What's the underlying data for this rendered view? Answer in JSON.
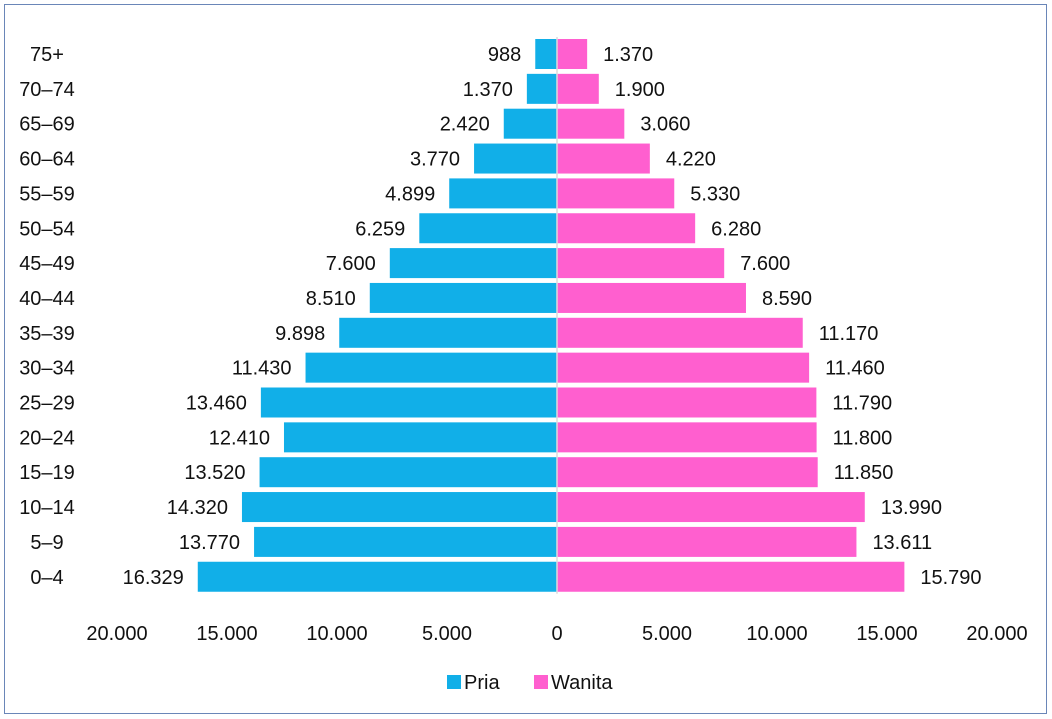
{
  "chart_data": {
    "type": "bar",
    "orientation": "horizontal",
    "layout": "population-pyramid",
    "categories": [
      "75+",
      "70–74",
      "65–69",
      "60–64",
      "55–59",
      "50–54",
      "45–49",
      "40–44",
      "35–39",
      "30–34",
      "25–29",
      "20–24",
      "15–19",
      "10–14",
      "5–9",
      "0–4"
    ],
    "series": [
      {
        "name": "Pria",
        "color": "#11afe8",
        "values": [
          988,
          1370,
          2420,
          3770,
          4899,
          6259,
          7600,
          8510,
          9898,
          11430,
          13460,
          12410,
          13520,
          14320,
          13770,
          16329
        ],
        "labels": [
          "988",
          "1.370",
          "2.420",
          "3.770",
          "4.899",
          "6.259",
          "7.600",
          "8.510",
          "9.898",
          "11.430",
          "13.460",
          "12.410",
          "13.520",
          "14.320",
          "13.770",
          "16.329"
        ]
      },
      {
        "name": "Wanita",
        "color": "#ff5fcf",
        "values": [
          1370,
          1900,
          3060,
          4220,
          5330,
          6280,
          7600,
          8590,
          11170,
          11460,
          11790,
          11800,
          11850,
          13990,
          13611,
          15790
        ],
        "labels": [
          "1.370",
          "1.900",
          "3.060",
          "4.220",
          "5.330",
          "6.280",
          "7.600",
          "8.590",
          "11.170",
          "11.460",
          "11.790",
          "11.800",
          "11.850",
          "13.990",
          "13.611",
          "15.790"
        ]
      }
    ],
    "x_ticks": [
      {
        "value": -20000,
        "label": "20.000"
      },
      {
        "value": -15000,
        "label": "15.000"
      },
      {
        "value": -10000,
        "label": "10.000"
      },
      {
        "value": -5000,
        "label": "5.000"
      },
      {
        "value": 0,
        "label": "0"
      },
      {
        "value": 5000,
        "label": "5.000"
      },
      {
        "value": 10000,
        "label": "10.000"
      },
      {
        "value": 15000,
        "label": "15.000"
      },
      {
        "value": 20000,
        "label": "20.000"
      }
    ],
    "xlim": [
      -20000,
      20000
    ],
    "legend_position": "bottom-center",
    "grid": false,
    "title": "",
    "xlabel": "",
    "ylabel": ""
  }
}
